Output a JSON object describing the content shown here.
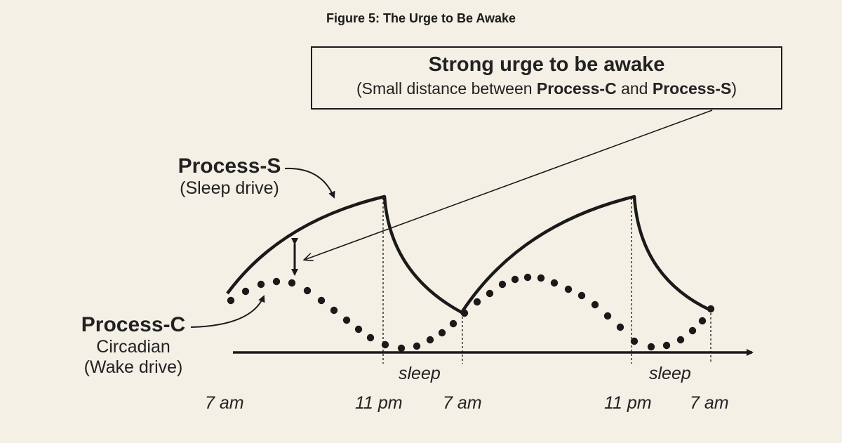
{
  "figure_title": "Figure 5: The Urge to Be Awake",
  "callout": {
    "heading": "Strong urge to be awake",
    "sub_prefix": "(Small distance between ",
    "process_c": "Process-C",
    "sub_and": " and ",
    "process_s": "Process-S",
    "sub_suffix": ")"
  },
  "process_s": {
    "name": "Process-S",
    "subtitle": "(Sleep drive)"
  },
  "process_c": {
    "name": "Process-C",
    "subtitle": "Circadian",
    "subtitle2": "(Wake drive)"
  },
  "axis": {
    "sleep_labels": [
      "sleep",
      "sleep"
    ],
    "time_labels": [
      "7 am",
      "11 pm",
      "7 am",
      "11 pm",
      "7 am"
    ]
  },
  "colors": {
    "background": "#f4f0e6",
    "ink": "#1a1a1a"
  }
}
